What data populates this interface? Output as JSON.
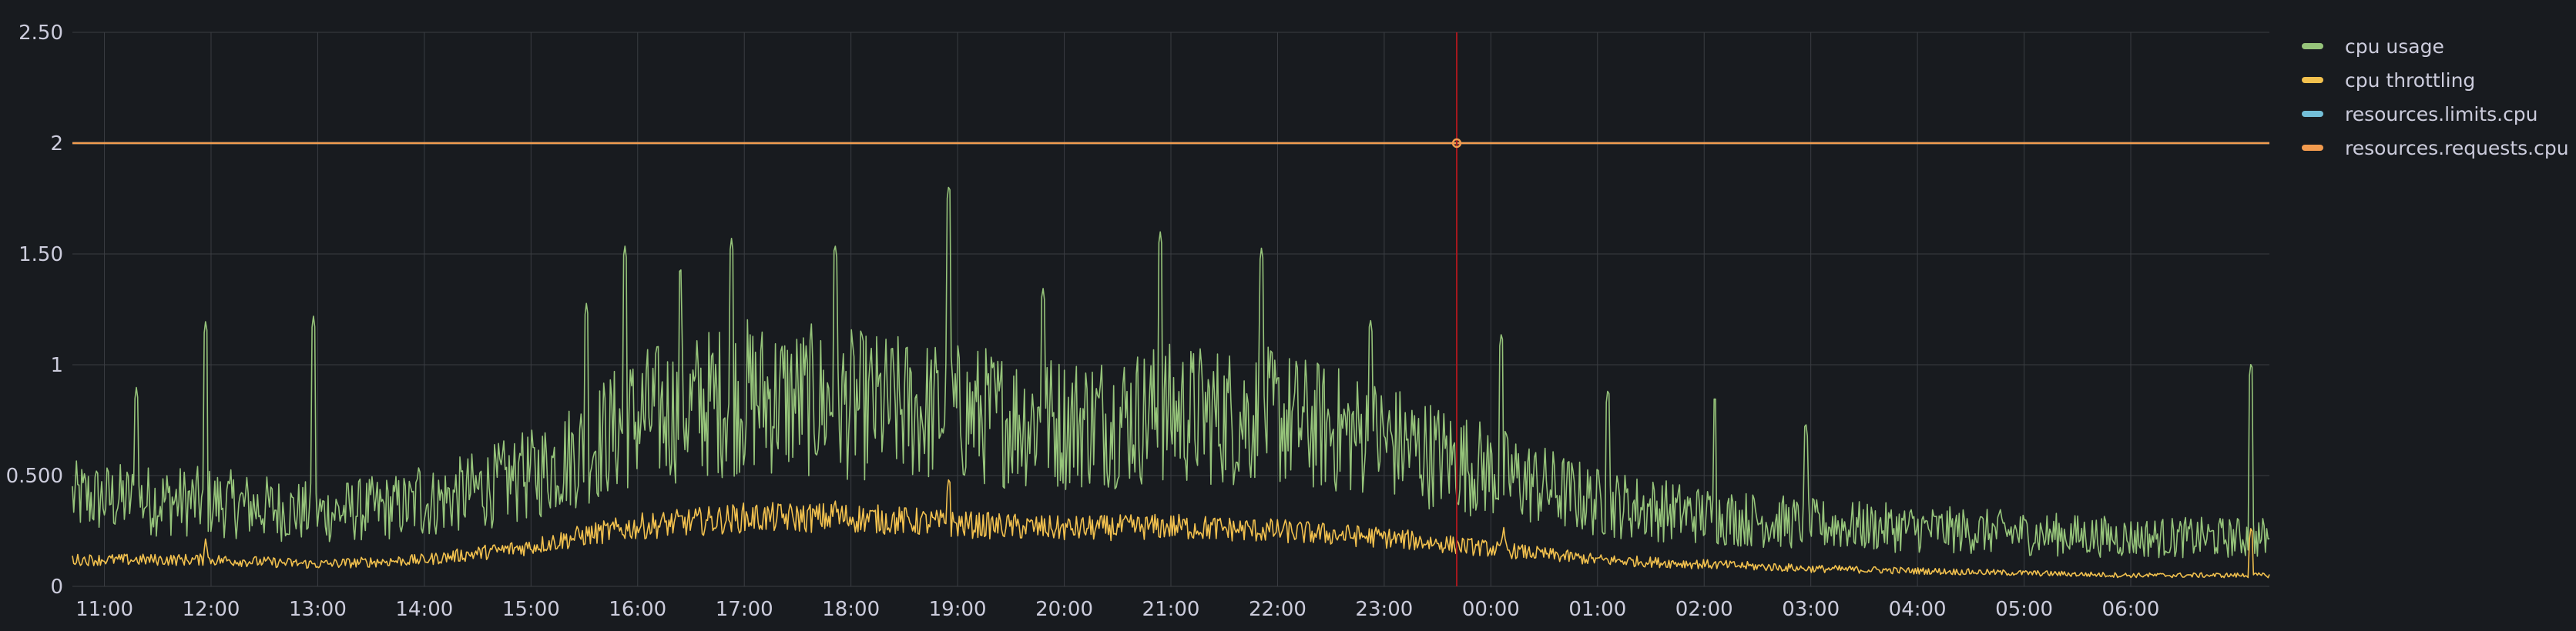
{
  "chart_data": {
    "type": "line",
    "title": "",
    "xlabel": "",
    "ylabel": "",
    "ylim": [
      0,
      2.5
    ],
    "yticks": [
      "0",
      "0.500",
      "1",
      "1.50",
      "2",
      "2.50"
    ],
    "xticks": [
      "11:00",
      "12:00",
      "13:00",
      "14:00",
      "15:00",
      "16:00",
      "17:00",
      "18:00",
      "19:00",
      "20:00",
      "21:00",
      "22:00",
      "23:00",
      "00:00",
      "01:00",
      "02:00",
      "03:00",
      "04:00",
      "05:00",
      "06:00"
    ],
    "x_range_hours": [
      10.7,
      31.3
    ],
    "grid": true,
    "legend_position": "right",
    "cursor_time_hours": 23.68,
    "series": [
      {
        "name": "cpu usage",
        "color": "#96c47a",
        "baseline": [
          [
            10.7,
            0.4
          ],
          [
            12.0,
            0.38
          ],
          [
            13.0,
            0.33
          ],
          [
            14.0,
            0.37
          ],
          [
            15.0,
            0.5
          ],
          [
            15.5,
            0.62
          ],
          [
            16.0,
            0.76
          ],
          [
            17.0,
            0.86
          ],
          [
            18.0,
            0.82
          ],
          [
            19.0,
            0.78
          ],
          [
            20.0,
            0.74
          ],
          [
            21.0,
            0.78
          ],
          [
            22.0,
            0.76
          ],
          [
            23.0,
            0.66
          ],
          [
            24.0,
            0.52
          ],
          [
            25.0,
            0.38
          ],
          [
            26.0,
            0.32
          ],
          [
            27.0,
            0.28
          ],
          [
            28.0,
            0.26
          ],
          [
            29.0,
            0.24
          ],
          [
            30.0,
            0.22
          ],
          [
            31.3,
            0.22
          ]
        ],
        "spikes": [
          [
            11.3,
            0.9
          ],
          [
            11.95,
            1.2
          ],
          [
            12.96,
            1.22
          ],
          [
            13.95,
            0.55
          ],
          [
            14.9,
            0.62
          ],
          [
            15.52,
            1.28
          ],
          [
            15.88,
            1.54
          ],
          [
            16.4,
            1.45
          ],
          [
            16.88,
            1.57
          ],
          [
            17.85,
            1.55
          ],
          [
            18.92,
            1.82
          ],
          [
            19.8,
            1.35
          ],
          [
            20.9,
            1.6
          ],
          [
            21.85,
            1.53
          ],
          [
            22.87,
            1.21
          ],
          [
            24.1,
            1.15
          ],
          [
            25.1,
            0.9
          ],
          [
            26.1,
            0.87
          ],
          [
            26.95,
            0.75
          ],
          [
            31.13,
            1.02
          ]
        ]
      },
      {
        "name": "cpu throttling",
        "color": "#f2c14e",
        "baseline": [
          [
            10.7,
            0.12
          ],
          [
            12.0,
            0.12
          ],
          [
            13.0,
            0.1
          ],
          [
            14.0,
            0.12
          ],
          [
            15.0,
            0.18
          ],
          [
            15.5,
            0.23
          ],
          [
            16.0,
            0.27
          ],
          [
            17.0,
            0.31
          ],
          [
            18.0,
            0.31
          ],
          [
            19.0,
            0.28
          ],
          [
            20.0,
            0.26
          ],
          [
            21.0,
            0.27
          ],
          [
            22.0,
            0.25
          ],
          [
            23.0,
            0.22
          ],
          [
            24.0,
            0.17
          ],
          [
            25.0,
            0.12
          ],
          [
            26.0,
            0.1
          ],
          [
            27.0,
            0.08
          ],
          [
            28.0,
            0.07
          ],
          [
            29.0,
            0.06
          ],
          [
            30.0,
            0.05
          ],
          [
            31.3,
            0.05
          ]
        ],
        "spikes": [
          [
            11.95,
            0.22
          ],
          [
            16.4,
            0.34
          ],
          [
            17.85,
            0.4
          ],
          [
            18.92,
            0.5
          ],
          [
            24.12,
            0.27
          ],
          [
            31.13,
            0.28
          ]
        ]
      },
      {
        "name": "resources.limits.cpu",
        "color": "#73bfd8",
        "constant": 2
      },
      {
        "name": "resources.requests.cpu",
        "color": "#f29b4e",
        "constant": 2
      }
    ]
  },
  "legend": {
    "items": [
      {
        "label": "cpu usage",
        "color": "#96c47a"
      },
      {
        "label": "cpu throttling",
        "color": "#f2c14e"
      },
      {
        "label": "resources.limits.cpu",
        "color": "#73bfd8"
      },
      {
        "label": "resources.requests.cpu",
        "color": "#f29b4e"
      }
    ]
  },
  "colors": {
    "background": "#181b1f",
    "grid": "#3a3d42",
    "text": "#ccccdc",
    "cursor": "#a8181f"
  }
}
